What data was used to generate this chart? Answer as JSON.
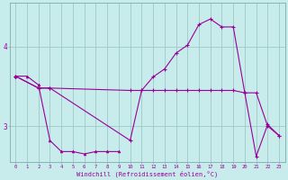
{
  "xlabel": "Windchill (Refroidissement éolien,°C)",
  "bg_color": "#c8ecec",
  "line_color": "#990099",
  "grid_color": "#9ec9c9",
  "xlim": [
    -0.5,
    23.5
  ],
  "ylim": [
    2.55,
    4.55
  ],
  "xticks": [
    0,
    1,
    2,
    3,
    4,
    5,
    6,
    7,
    8,
    9,
    10,
    11,
    12,
    13,
    14,
    15,
    16,
    17,
    18,
    19,
    20,
    21,
    22,
    23
  ],
  "yticks": [
    3,
    4
  ],
  "line1_x": [
    0,
    1,
    2,
    3,
    4,
    5,
    6,
    7,
    8,
    9
  ],
  "line1_y": [
    3.63,
    3.63,
    3.52,
    2.82,
    2.68,
    2.68,
    2.65,
    2.68,
    2.68,
    2.68
  ],
  "line2_x": [
    0,
    2,
    3,
    10,
    11,
    12,
    13,
    14,
    15,
    16,
    17,
    18,
    19,
    20,
    21,
    22,
    23
  ],
  "line2_y": [
    3.63,
    3.48,
    3.48,
    3.45,
    3.45,
    3.45,
    3.45,
    3.45,
    3.45,
    3.45,
    3.45,
    3.45,
    3.45,
    3.42,
    3.42,
    3.0,
    2.88
  ],
  "line3_x": [
    0,
    2,
    3,
    10,
    11,
    12,
    13,
    14,
    15,
    16,
    17,
    18,
    19,
    20,
    21,
    22,
    23
  ],
  "line3_y": [
    3.63,
    3.48,
    3.48,
    2.82,
    3.45,
    3.62,
    3.72,
    3.92,
    4.02,
    4.28,
    4.35,
    4.25,
    4.25,
    3.42,
    2.62,
    3.02,
    2.88
  ]
}
